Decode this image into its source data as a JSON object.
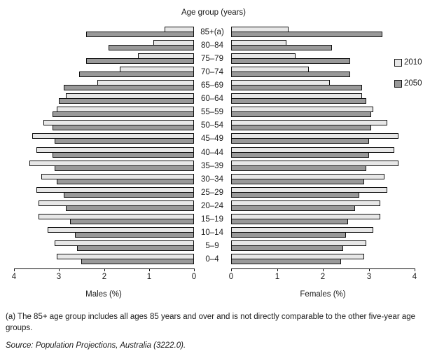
{
  "chart_data": {
    "type": "bar",
    "variant": "population-pyramid",
    "title": "Age group (years)",
    "age_groups": [
      "85+(a)",
      "80–84",
      "75–79",
      "70–74",
      "65–69",
      "60–64",
      "55–59",
      "50–54",
      "45–49",
      "40–44",
      "35–39",
      "30–34",
      "25–29",
      "20–24",
      "15–19",
      "10–14",
      "5–9",
      "0–4"
    ],
    "left_panel": {
      "label": "Males (%)",
      "xlim": [
        0,
        4
      ],
      "ticks": [
        "4",
        "3",
        "2",
        "1",
        "0"
      ]
    },
    "right_panel": {
      "label": "Females (%)",
      "xlim": [
        0,
        4
      ],
      "ticks": [
        "0",
        "1",
        "2",
        "3",
        "4"
      ]
    },
    "grid": false,
    "legend_position": "right",
    "series": [
      {
        "name": "2010",
        "color": "#e7e7e7",
        "males": [
          0.65,
          0.9,
          1.25,
          1.65,
          2.15,
          2.85,
          3.05,
          3.35,
          3.6,
          3.5,
          3.65,
          3.4,
          3.5,
          3.45,
          3.45,
          3.25,
          3.1,
          3.05
        ],
        "females": [
          1.25,
          1.2,
          1.4,
          1.7,
          2.15,
          2.85,
          3.1,
          3.4,
          3.65,
          3.55,
          3.65,
          3.35,
          3.4,
          3.25,
          3.25,
          3.1,
          2.95,
          2.9
        ]
      },
      {
        "name": "2050",
        "color": "#999999",
        "males": [
          2.4,
          1.9,
          2.4,
          2.55,
          2.9,
          3.0,
          3.15,
          3.15,
          3.1,
          3.15,
          3.1,
          3.05,
          2.9,
          2.85,
          2.75,
          2.65,
          2.6,
          2.5
        ],
        "females": [
          3.3,
          2.2,
          2.6,
          2.6,
          2.85,
          2.95,
          3.05,
          3.05,
          3.0,
          3.0,
          2.95,
          2.9,
          2.8,
          2.7,
          2.55,
          2.5,
          2.45,
          2.4
        ]
      }
    ]
  },
  "legend": {
    "items": [
      {
        "label": "2010"
      },
      {
        "label": "2050"
      }
    ]
  },
  "footnote": "(a) The 85+ age group includes all ages 85 years and over and is not directly comparable to the other five-year age groups.",
  "source": "Source: Population Projections, Australia (3222.0)."
}
